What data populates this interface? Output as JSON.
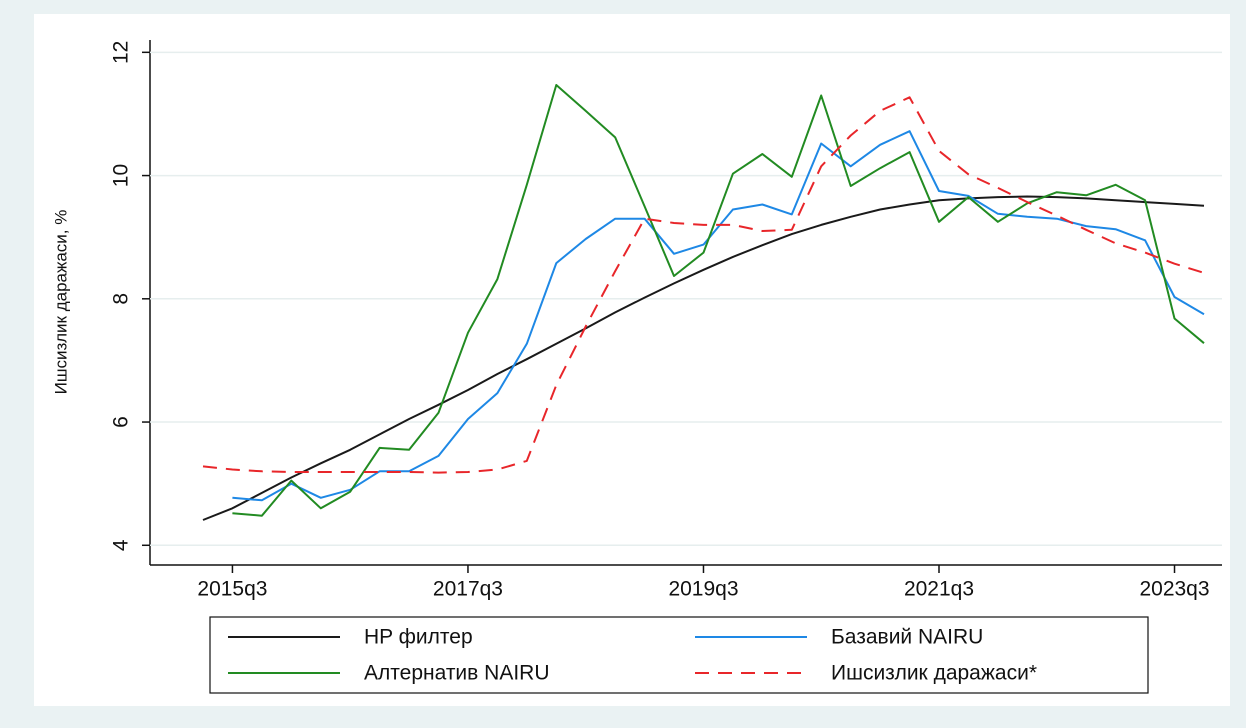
{
  "chart_data": {
    "type": "line",
    "y_label": "Ишсизлик даражаси, %",
    "categories": [
      null,
      "2015q3",
      null,
      null,
      null,
      null,
      null,
      null,
      null,
      "2017q3",
      null,
      null,
      null,
      null,
      null,
      null,
      null,
      "2019q3",
      null,
      null,
      null,
      null,
      null,
      null,
      null,
      "2021q3",
      null,
      null,
      null,
      null,
      null,
      null,
      null,
      "2023q3",
      null
    ],
    "series": [
      {
        "name": "HP филтер",
        "color": "#1a1a1a",
        "values": [
          4.41,
          4.6,
          4.85,
          5.1,
          5.33,
          5.55,
          5.8,
          6.05,
          6.28,
          6.52,
          6.78,
          7.02,
          7.27,
          7.52,
          7.78,
          8.02,
          8.25,
          8.47,
          8.68,
          8.87,
          9.05,
          9.2,
          9.33,
          9.45,
          9.53,
          9.6,
          9.63,
          9.65,
          9.66,
          9.65,
          9.63,
          9.6,
          9.57,
          9.54,
          9.51
        ]
      },
      {
        "name": "Базавий NAIRU",
        "color": "#1e88e5",
        "values": [
          null,
          4.77,
          4.73,
          5.0,
          4.77,
          4.9,
          5.2,
          5.2,
          5.45,
          6.05,
          6.47,
          7.27,
          8.58,
          8.97,
          9.3,
          9.3,
          8.73,
          8.88,
          9.45,
          9.53,
          9.37,
          10.52,
          10.15,
          10.5,
          10.72,
          9.75,
          9.67,
          9.38,
          9.33,
          9.3,
          9.18,
          9.13,
          8.95,
          8.03,
          7.75
        ]
      },
      {
        "name": "Алтернатив NAIRU",
        "color": "#228b22",
        "values": [
          null,
          4.52,
          4.48,
          5.05,
          4.6,
          4.87,
          5.58,
          5.55,
          6.15,
          7.45,
          8.32,
          9.85,
          11.47,
          11.05,
          10.62,
          9.5,
          8.37,
          8.75,
          10.03,
          10.35,
          9.98,
          11.3,
          9.83,
          10.12,
          10.38,
          9.25,
          9.65,
          9.25,
          9.55,
          9.73,
          9.68,
          9.85,
          9.6,
          7.68,
          7.28
        ]
      },
      {
        "name": "Ишсизлик даражаси*",
        "color": "#e8262a",
        "dashed": true,
        "values": [
          5.28,
          5.23,
          5.2,
          5.19,
          5.19,
          5.19,
          5.19,
          5.19,
          5.18,
          5.19,
          5.23,
          5.37,
          6.6,
          7.55,
          8.45,
          9.3,
          9.23,
          9.2,
          9.2,
          9.1,
          9.12,
          10.15,
          10.65,
          11.05,
          11.27,
          10.4,
          10.02,
          9.8,
          9.57,
          9.35,
          9.12,
          8.9,
          8.75,
          8.57,
          8.42
        ]
      }
    ],
    "ylim": [
      3.68,
      12.2
    ],
    "yticks": [
      4,
      6,
      8,
      10,
      12
    ],
    "grid": true,
    "legend": "bottom"
  }
}
